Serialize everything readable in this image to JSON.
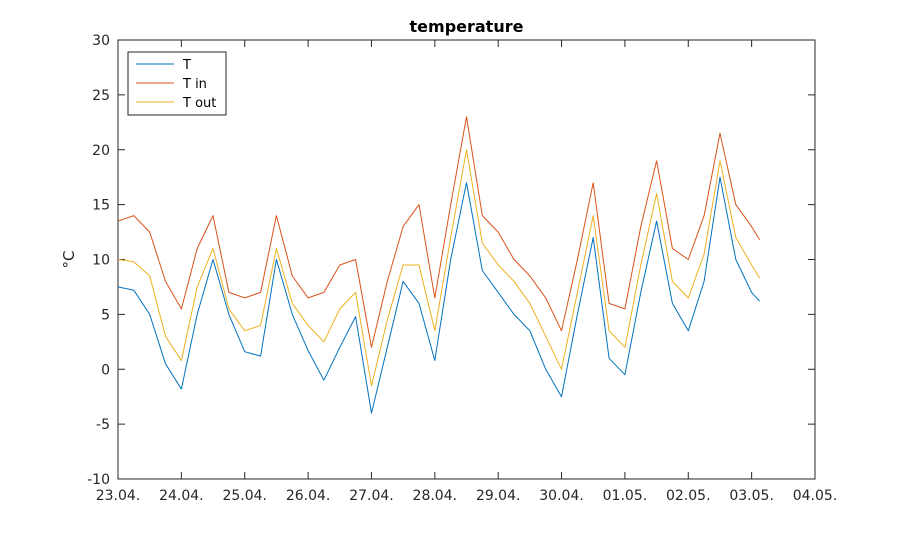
{
  "chart_data": {
    "type": "line",
    "title": "temperature",
    "xlabel": "",
    "ylabel": "°C",
    "xlim": [
      "23.04.",
      "04.05."
    ],
    "ylim": [
      -10,
      30
    ],
    "x_ticks": [
      "23.04.",
      "24.04.",
      "25.04.",
      "26.04.",
      "27.04.",
      "28.04.",
      "29.04.",
      "30.04.",
      "01.05.",
      "02.05.",
      "03.05.",
      "04.05."
    ],
    "y_ticks": [
      -10,
      -5,
      0,
      5,
      10,
      15,
      20,
      25,
      30
    ],
    "legend_position": "top-left",
    "grid": false,
    "x": [
      "23.04. 00:00",
      "23.04. 06:00",
      "23.04. 12:00",
      "23.04. 18:00",
      "24.04. 00:00",
      "24.04. 06:00",
      "24.04. 12:00",
      "24.04. 18:00",
      "25.04. 00:00",
      "25.04. 06:00",
      "25.04. 12:00",
      "25.04. 18:00",
      "26.04. 00:00",
      "26.04. 06:00",
      "26.04. 12:00",
      "26.04. 18:00",
      "27.04. 00:00",
      "27.04. 06:00",
      "27.04. 12:00",
      "27.04. 18:00",
      "28.04. 00:00",
      "28.04. 06:00",
      "28.04. 12:00",
      "28.04. 18:00",
      "29.04. 00:00",
      "29.04. 06:00",
      "29.04. 12:00",
      "29.04. 18:00",
      "30.04. 00:00",
      "30.04. 06:00",
      "30.04. 12:00",
      "30.04. 18:00",
      "01.05. 00:00",
      "01.05. 06:00",
      "01.05. 12:00",
      "01.05. 18:00",
      "02.05. 00:00",
      "02.05. 06:00",
      "02.05. 12:00",
      "02.05. 18:00",
      "03.05. 00:00",
      "03.05. 03:00"
    ],
    "series": [
      {
        "name": "T",
        "color": "#0072BD",
        "values": [
          7.5,
          7.2,
          5.0,
          0.5,
          -1.8,
          5.0,
          10.0,
          5.0,
          1.6,
          1.2,
          10.0,
          5.0,
          1.7,
          -1.0,
          2.0,
          4.8,
          -4.0,
          2.0,
          8.0,
          6.0,
          0.8,
          10.0,
          17.0,
          9.0,
          7.0,
          5.0,
          3.5,
          0.0,
          -2.5,
          5.0,
          12.0,
          1.0,
          -0.5,
          7.0,
          13.5,
          6.0,
          3.5,
          8.0,
          17.5,
          10.0,
          7.0,
          6.2
        ]
      },
      {
        "name": "T in",
        "color": "#D95319",
        "values": [
          13.5,
          14.0,
          12.5,
          8.0,
          5.5,
          11.0,
          14.0,
          7.0,
          6.5,
          7.0,
          14.0,
          8.5,
          6.5,
          7.0,
          9.5,
          10.0,
          2.0,
          8.0,
          13.0,
          15.0,
          6.5,
          15.0,
          23.0,
          14.0,
          12.5,
          10.0,
          8.5,
          6.5,
          3.5,
          10.0,
          17.0,
          6.0,
          5.5,
          13.0,
          19.0,
          11.0,
          10.0,
          14.0,
          21.5,
          15.0,
          13.0,
          11.8
        ]
      },
      {
        "name": "T out",
        "color": "#EDB120",
        "values": [
          10.0,
          9.8,
          8.5,
          3.0,
          0.8,
          7.5,
          11.0,
          5.5,
          3.5,
          4.0,
          11.0,
          6.0,
          4.0,
          2.5,
          5.5,
          7.0,
          -1.5,
          4.5,
          9.5,
          9.5,
          3.5,
          12.0,
          20.0,
          11.5,
          9.5,
          8.0,
          6.0,
          3.0,
          0.0,
          7.0,
          14.0,
          3.5,
          2.0,
          9.5,
          16.0,
          8.0,
          6.5,
          10.5,
          19.0,
          12.0,
          9.5,
          8.3
        ]
      }
    ]
  }
}
